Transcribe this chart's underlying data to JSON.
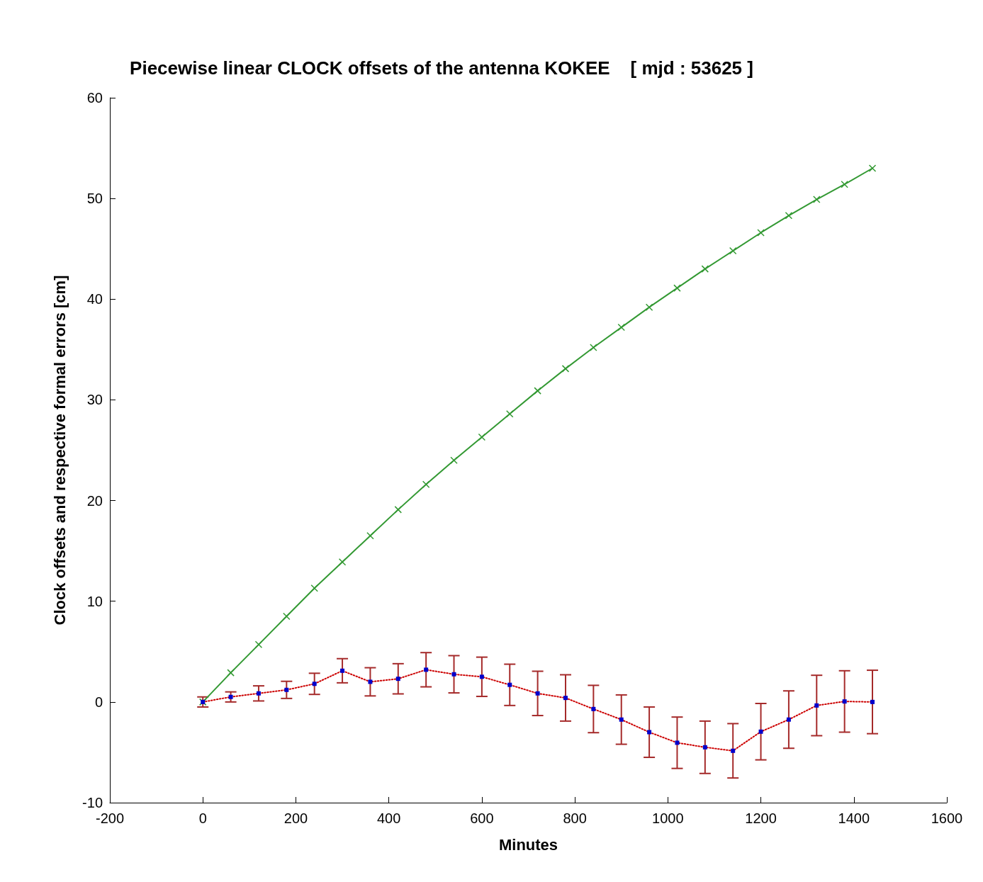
{
  "chart_data": {
    "type": "line",
    "title": "Piecewise linear CLOCK offsets of the antenna KOKEE    [ mjd : 53625 ]",
    "xlabel": "Minutes",
    "ylabel": "Clock offsets and respective formal errors [cm]",
    "x": [
      0,
      60,
      120,
      180,
      240,
      300,
      360,
      420,
      480,
      540,
      600,
      660,
      720,
      780,
      840,
      900,
      960,
      1020,
      1080,
      1140,
      1200,
      1260,
      1320,
      1380,
      1440
    ],
    "series": [
      {
        "color": "#339933",
        "marker": "cross",
        "line_style": "solid",
        "values": [
          0,
          2.9,
          5.7,
          8.5,
          11.3,
          13.9,
          16.5,
          19.1,
          21.6,
          24.0,
          26.3,
          28.6,
          30.9,
          33.1,
          35.2,
          37.2,
          39.2,
          41.1,
          43.0,
          44.8,
          46.6,
          48.3,
          49.9,
          51.4,
          53.0
        ]
      },
      {
        "color": "#cc0000",
        "marker": "square",
        "line_style": "dotted",
        "values": [
          0,
          0.5,
          0.85,
          1.2,
          1.8,
          3.1,
          2.0,
          2.3,
          3.2,
          2.75,
          2.5,
          1.7,
          0.85,
          0.4,
          -0.7,
          -1.75,
          -3.0,
          -4.05,
          -4.5,
          -4.85,
          -2.95,
          -1.75,
          -0.35,
          0.05,
          0
        ],
        "errors": [
          0.5,
          0.5,
          0.75,
          0.85,
          1.05,
          1.2,
          1.4,
          1.5,
          1.7,
          1.85,
          1.95,
          2.05,
          2.2,
          2.3,
          2.35,
          2.45,
          2.5,
          2.55,
          2.6,
          2.7,
          2.8,
          2.85,
          3.0,
          3.05,
          3.15
        ]
      }
    ],
    "xlim": [
      -200,
      1600
    ],
    "xticks": [
      -200,
      0,
      200,
      400,
      600,
      800,
      1000,
      1200,
      1400,
      1600
    ],
    "ylim": [
      -10,
      60
    ],
    "yticks": [
      -10,
      0,
      10,
      20,
      30,
      40,
      50,
      60
    ],
    "grid": false
  }
}
